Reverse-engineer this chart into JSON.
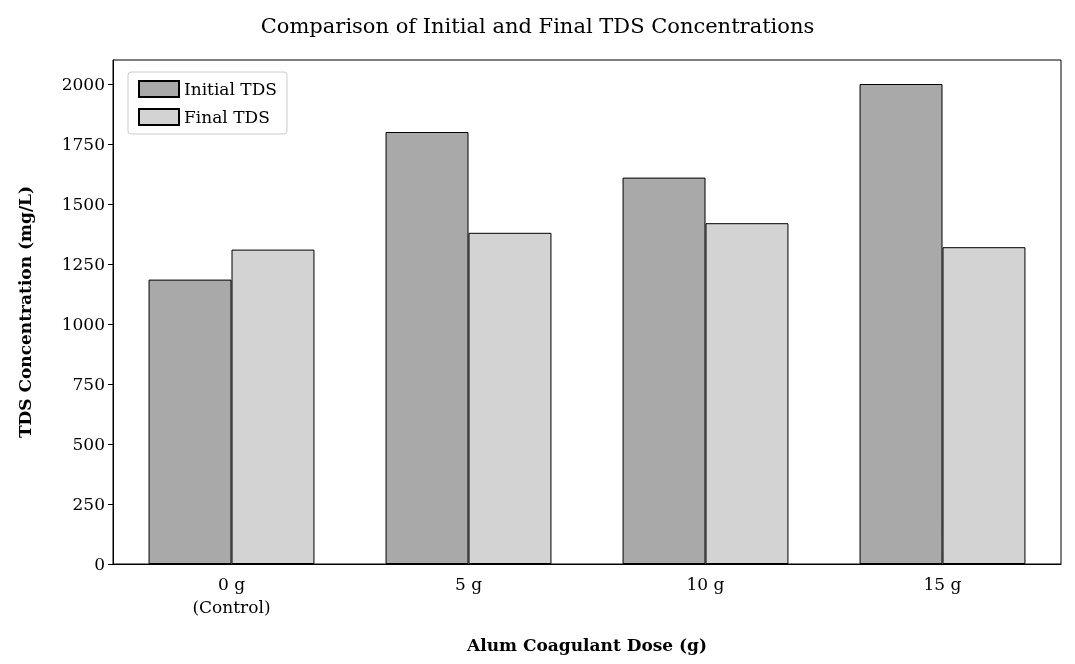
{
  "chart_data": {
    "type": "bar",
    "title": "Comparison of Initial and Final TDS Concentrations",
    "xlabel": "Alum Coagulant Dose (g)",
    "ylabel": "TDS Concentration (mg/L)",
    "categories": [
      "0 g\n(Control)",
      "5 g",
      "10 g",
      "15 g"
    ],
    "series": [
      {
        "name": "Initial TDS",
        "color": "#a9a9a9",
        "values": [
          1185,
          1800,
          1610,
          2000
        ]
      },
      {
        "name": "Final TDS",
        "color": "#d3d3d3",
        "values": [
          1310,
          1380,
          1420,
          1320
        ]
      }
    ],
    "ylim": [
      0,
      2100
    ],
    "yticks": [
      0,
      250,
      500,
      750,
      1000,
      1250,
      1500,
      1750,
      2000
    ],
    "grid": false,
    "legend": "top left"
  }
}
